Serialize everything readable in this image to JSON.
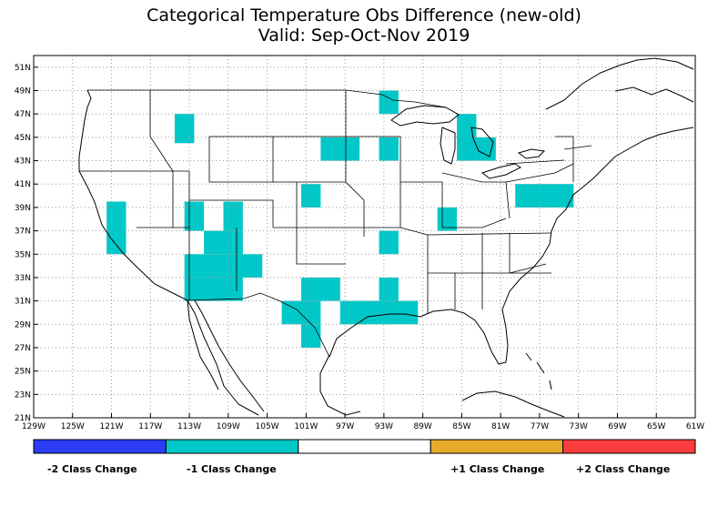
{
  "title": {
    "line1": "Categorical Temperature Obs Difference (new-old)",
    "line2": "Valid: Sep-Oct-Nov 2019"
  },
  "map_extent": {
    "lon_min": -129,
    "lon_max": -61,
    "lat_min": 21,
    "lat_max": 52
  },
  "lat_ticks": [
    "21N",
    "23N",
    "25N",
    "27N",
    "29N",
    "31N",
    "33N",
    "35N",
    "37N",
    "39N",
    "41N",
    "43N",
    "45N",
    "47N",
    "49N",
    "51N"
  ],
  "lon_ticks": [
    "129W",
    "125W",
    "121W",
    "117W",
    "113W",
    "109W",
    "105W",
    "101W",
    "97W",
    "93W",
    "89W",
    "85W",
    "81W",
    "77W",
    "73W",
    "69W",
    "65W",
    "61W"
  ],
  "legend": {
    "bins": [
      {
        "label": "-2 Class Change",
        "color": "#2b3df5"
      },
      {
        "label": "-1 Class Change",
        "color": "#00c8c8"
      },
      {
        "label": "",
        "color": "#ffffff"
      },
      {
        "label": "+1 Class Change",
        "color": "#e6aa2a"
      },
      {
        "label": "+2 Class Change",
        "color": "#fa3c3c"
      }
    ]
  },
  "cells": {
    "value": -1,
    "color": "#00c8c8",
    "regions": [
      {
        "lon": [
          -121.5,
          -119.5
        ],
        "lat": [
          39.5,
          35.0
        ]
      },
      {
        "lon": [
          -114.5,
          -112.5
        ],
        "lat": [
          47.0,
          44.5
        ]
      },
      {
        "lon": [
          -113.5,
          -111.5
        ],
        "lat": [
          39.5,
          37.0
        ]
      },
      {
        "lon": [
          -109.5,
          -107.5
        ],
        "lat": [
          39.5,
          37.0
        ]
      },
      {
        "lon": [
          -111.5,
          -107.5
        ],
        "lat": [
          37.0,
          35.0
        ]
      },
      {
        "lon": [
          -113.5,
          -105.5
        ],
        "lat": [
          35.0,
          33.0
        ]
      },
      {
        "lon": [
          -113.5,
          -107.5
        ],
        "lat": [
          33.0,
          31.0
        ]
      },
      {
        "lon": [
          -101.5,
          -99.5
        ],
        "lat": [
          41.0,
          39.0
        ]
      },
      {
        "lon": [
          -99.5,
          -95.5
        ],
        "lat": [
          45.0,
          43.0
        ]
      },
      {
        "lon": [
          -93.5,
          -91.5
        ],
        "lat": [
          45.0,
          43.0
        ]
      },
      {
        "lon": [
          -93.5,
          -91.5
        ],
        "lat": [
          49.0,
          47.0
        ]
      },
      {
        "lon": [
          -85.5,
          -83.5
        ],
        "lat": [
          47.0,
          43.0
        ]
      },
      {
        "lon": [
          -83.5,
          -81.5
        ],
        "lat": [
          45.0,
          43.0
        ]
      },
      {
        "lon": [
          -87.5,
          -85.5
        ],
        "lat": [
          39.0,
          37.0
        ]
      },
      {
        "lon": [
          -93.5,
          -91.5
        ],
        "lat": [
          37.0,
          35.0
        ]
      },
      {
        "lon": [
          -79.5,
          -73.5
        ],
        "lat": [
          41.0,
          39.0
        ]
      },
      {
        "lon": [
          -101.5,
          -97.5
        ],
        "lat": [
          33.0,
          31.0
        ]
      },
      {
        "lon": [
          -103.5,
          -99.5
        ],
        "lat": [
          31.0,
          29.0
        ]
      },
      {
        "lon": [
          -101.5,
          -99.5
        ],
        "lat": [
          29.0,
          27.0
        ]
      },
      {
        "lon": [
          -93.5,
          -91.5
        ],
        "lat": [
          33.0,
          31.0
        ]
      },
      {
        "lon": [
          -97.5,
          -89.5
        ],
        "lat": [
          31.0,
          29.0
        ]
      }
    ]
  }
}
